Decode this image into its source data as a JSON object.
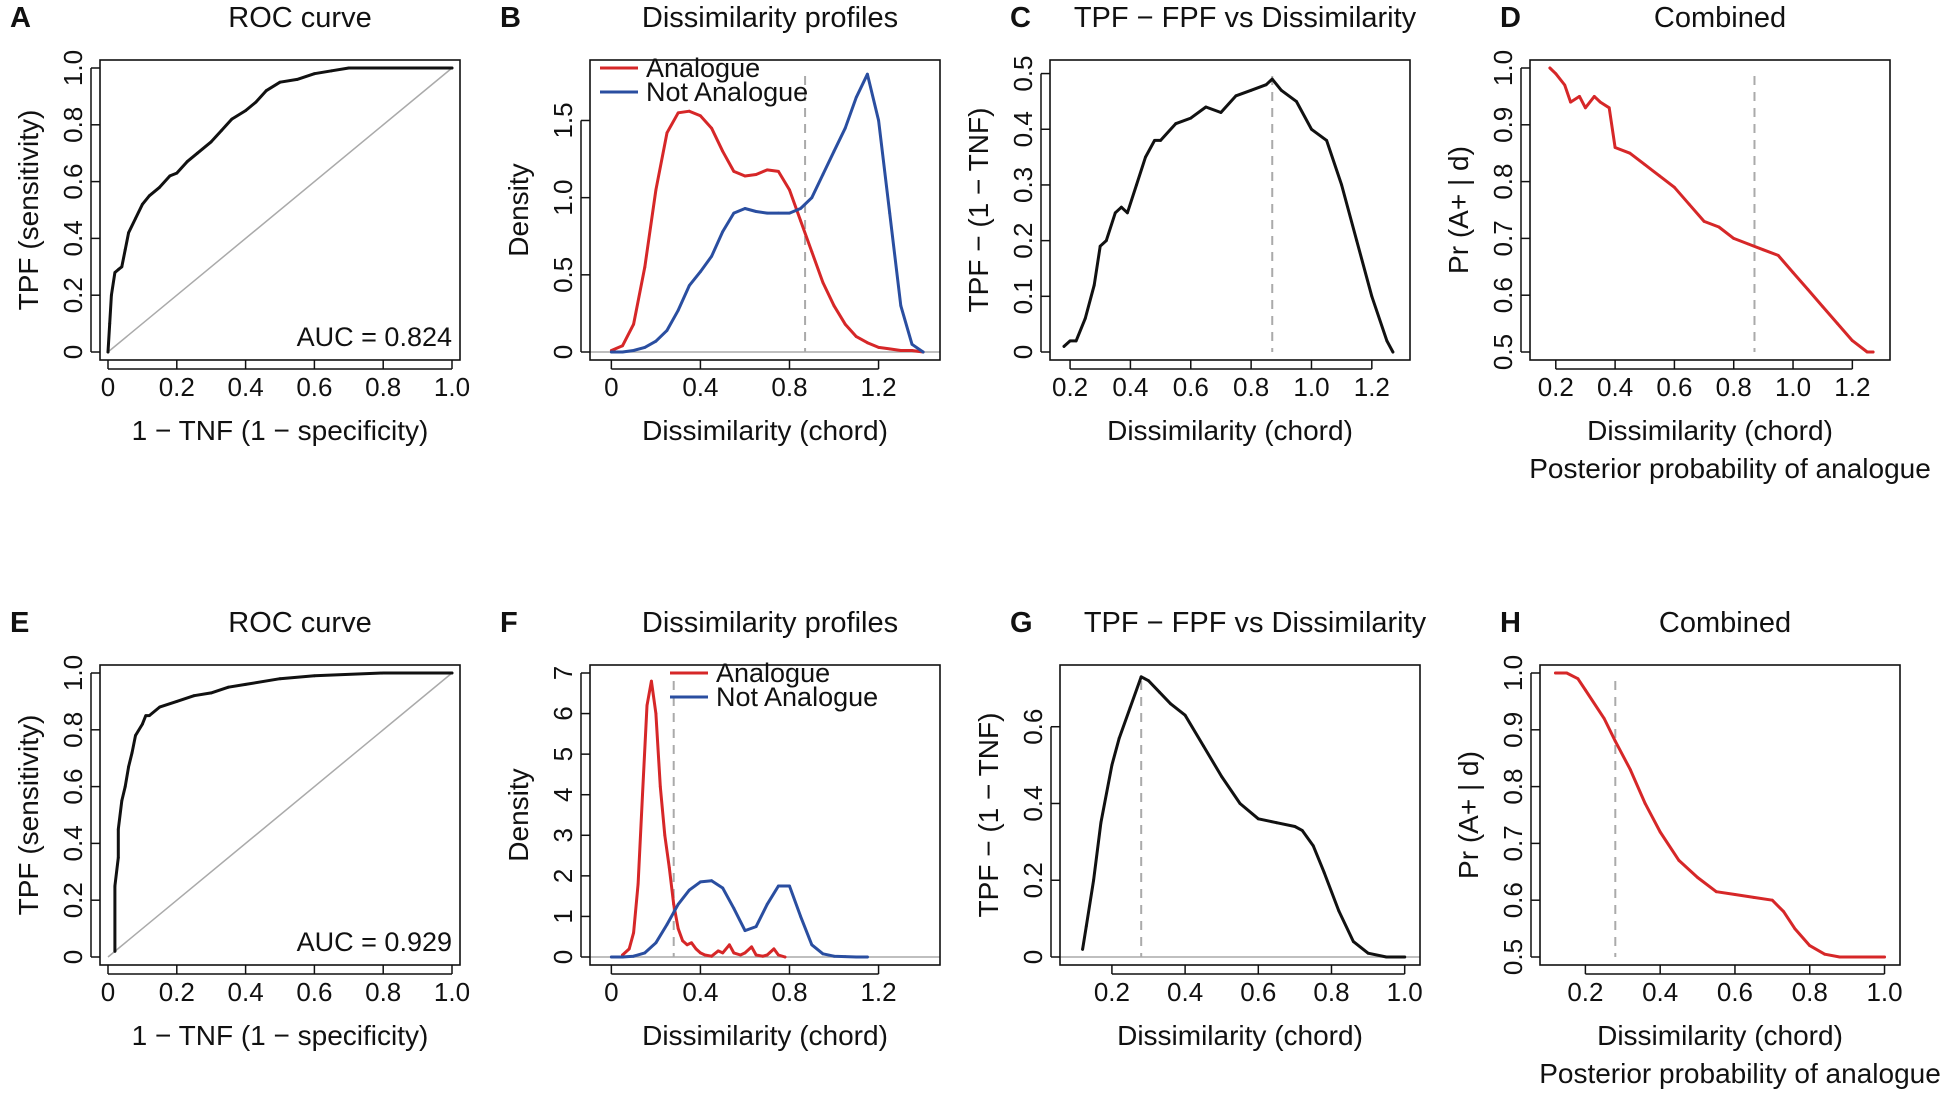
{
  "figure": "Analogue evaluation panels",
  "colors": {
    "analogue": "#d62728",
    "not_analogue": "#2a4ea0",
    "curve": "#111111",
    "reference": "#aaaaaa",
    "dashed": "#aaaaaa"
  },
  "chart_data": [
    {
      "id": "A",
      "type": "line",
      "title": "ROC curve",
      "xlabel": "1 − TNF (1 − specificity)",
      "ylabel": "TPF (sensitivity)",
      "xlim": [
        0,
        1
      ],
      "ylim": [
        0,
        1
      ],
      "xticks": [
        0,
        0.2,
        0.4,
        0.6,
        0.8,
        1.0
      ],
      "xtick_labels": [
        "0",
        "0.2",
        "0.4",
        "0.6",
        "0.8",
        "1.0"
      ],
      "yticks": [
        0,
        0.2,
        0.4,
        0.6,
        0.8,
        1.0
      ],
      "ytick_labels": [
        "0",
        "0.2",
        "0.4",
        "0.6",
        "0.8",
        "1.0"
      ],
      "annotation": "AUC = 0.824",
      "diagonal": true,
      "series": [
        {
          "name": "ROC",
          "color": "#111111",
          "x": [
            0,
            0.005,
            0.01,
            0.02,
            0.03,
            0.04,
            0.05,
            0.06,
            0.08,
            0.1,
            0.12,
            0.15,
            0.18,
            0.2,
            0.23,
            0.26,
            0.3,
            0.33,
            0.36,
            0.4,
            0.43,
            0.46,
            0.5,
            0.55,
            0.6,
            0.65,
            0.7,
            0.8,
            0.9,
            1.0
          ],
          "y": [
            0,
            0.1,
            0.2,
            0.28,
            0.29,
            0.3,
            0.36,
            0.42,
            0.47,
            0.52,
            0.55,
            0.58,
            0.62,
            0.63,
            0.67,
            0.7,
            0.74,
            0.78,
            0.82,
            0.85,
            0.88,
            0.92,
            0.95,
            0.96,
            0.98,
            0.99,
            1.0,
            1.0,
            1.0,
            1.0
          ]
        }
      ]
    },
    {
      "id": "B",
      "type": "line",
      "title": "Dissimilarity profiles",
      "xlabel": "Dissimilarity (chord)",
      "ylabel": "Density",
      "xlim": [
        -0.06,
        1.44
      ],
      "ylim": [
        0,
        1.84
      ],
      "xticks": [
        0,
        0.4,
        0.8,
        1.2
      ],
      "xtick_labels": [
        "0",
        "0.4",
        "0.8",
        "1.2"
      ],
      "yticks": [
        0,
        0.5,
        1.0,
        1.5
      ],
      "ytick_labels": [
        "0",
        "0.5",
        "1.0",
        "1.5"
      ],
      "vline": 0.87,
      "baseline": true,
      "legend": {
        "position": "top-left",
        "entries": [
          "Analogue",
          "Not Analogue"
        ]
      },
      "series": [
        {
          "name": "Analogue",
          "color": "#d62728",
          "x": [
            0,
            0.05,
            0.1,
            0.15,
            0.2,
            0.25,
            0.3,
            0.35,
            0.4,
            0.45,
            0.5,
            0.55,
            0.6,
            0.65,
            0.7,
            0.75,
            0.8,
            0.85,
            0.9,
            0.95,
            1.0,
            1.05,
            1.1,
            1.15,
            1.2,
            1.25,
            1.3,
            1.35,
            1.4
          ],
          "y": [
            0.01,
            0.04,
            0.18,
            0.55,
            1.05,
            1.42,
            1.55,
            1.56,
            1.53,
            1.45,
            1.3,
            1.17,
            1.14,
            1.15,
            1.18,
            1.17,
            1.05,
            0.85,
            0.65,
            0.45,
            0.3,
            0.18,
            0.1,
            0.06,
            0.03,
            0.02,
            0.01,
            0.01,
            0.0
          ]
        },
        {
          "name": "Not Analogue",
          "color": "#2a4ea0",
          "x": [
            0,
            0.05,
            0.1,
            0.15,
            0.2,
            0.25,
            0.3,
            0.35,
            0.4,
            0.45,
            0.5,
            0.55,
            0.6,
            0.65,
            0.7,
            0.75,
            0.8,
            0.85,
            0.9,
            0.95,
            1.0,
            1.05,
            1.1,
            1.15,
            1.2,
            1.25,
            1.3,
            1.35,
            1.4
          ],
          "y": [
            0.0,
            0.0,
            0.01,
            0.03,
            0.07,
            0.14,
            0.27,
            0.43,
            0.52,
            0.62,
            0.78,
            0.9,
            0.93,
            0.91,
            0.9,
            0.9,
            0.9,
            0.93,
            1.0,
            1.15,
            1.3,
            1.45,
            1.65,
            1.8,
            1.5,
            0.9,
            0.3,
            0.05,
            0.0
          ]
        }
      ]
    },
    {
      "id": "C",
      "type": "line",
      "title": "TPF − FPF vs Dissimilarity",
      "xlabel": "Dissimilarity (chord)",
      "ylabel": "TPF − (1 − TNF)",
      "xlim": [
        0.16,
        1.3
      ],
      "ylim": [
        0,
        0.51
      ],
      "xticks": [
        0.2,
        0.4,
        0.6,
        0.8,
        1.0,
        1.2
      ],
      "xtick_labels": [
        "0.2",
        "0.4",
        "0.6",
        "0.8",
        "1.0",
        "1.2"
      ],
      "yticks": [
        0,
        0.1,
        0.2,
        0.3,
        0.4,
        0.5
      ],
      "ytick_labels": [
        "0",
        "0.1",
        "0.2",
        "0.3",
        "0.4",
        "0.5"
      ],
      "vline": 0.87,
      "series": [
        {
          "name": "TPF-FPF",
          "color": "#111111",
          "x": [
            0.18,
            0.2,
            0.22,
            0.25,
            0.28,
            0.3,
            0.32,
            0.35,
            0.37,
            0.39,
            0.42,
            0.45,
            0.48,
            0.5,
            0.55,
            0.6,
            0.65,
            0.7,
            0.75,
            0.8,
            0.85,
            0.87,
            0.9,
            0.95,
            1.0,
            1.05,
            1.1,
            1.15,
            1.2,
            1.25,
            1.27
          ],
          "y": [
            0.01,
            0.02,
            0.02,
            0.06,
            0.12,
            0.19,
            0.2,
            0.25,
            0.26,
            0.25,
            0.3,
            0.35,
            0.38,
            0.38,
            0.41,
            0.42,
            0.44,
            0.43,
            0.46,
            0.47,
            0.48,
            0.49,
            0.47,
            0.45,
            0.4,
            0.38,
            0.3,
            0.2,
            0.1,
            0.02,
            0.0
          ]
        }
      ]
    },
    {
      "id": "D",
      "type": "line",
      "title": "Combined",
      "xlabel": "Dissimilarity (chord)",
      "xlabel2": "Posterior probability of analogue",
      "ylabel": "Pr (A+ | d)",
      "xlim": [
        0.14,
        1.3
      ],
      "ylim": [
        0.5,
        1.0
      ],
      "xticks": [
        0.2,
        0.4,
        0.6,
        0.8,
        1.0,
        1.2
      ],
      "xtick_labels": [
        "0.2",
        "0.4",
        "0.6",
        "0.8",
        "1.0",
        "1.2"
      ],
      "yticks": [
        0.5,
        0.6,
        0.7,
        0.8,
        0.9,
        1.0
      ],
      "ytick_labels": [
        "0.5",
        "0.6",
        "0.7",
        "0.8",
        "0.9",
        "1.0"
      ],
      "vline": 0.87,
      "series": [
        {
          "name": "Posterior",
          "color": "#d62728",
          "x": [
            0.18,
            0.2,
            0.23,
            0.25,
            0.28,
            0.3,
            0.33,
            0.35,
            0.38,
            0.4,
            0.45,
            0.5,
            0.55,
            0.6,
            0.65,
            0.7,
            0.75,
            0.8,
            0.85,
            0.9,
            0.95,
            1.0,
            1.05,
            1.1,
            1.15,
            1.2,
            1.25,
            1.27
          ],
          "y": [
            1.0,
            0.99,
            0.97,
            0.94,
            0.95,
            0.93,
            0.95,
            0.94,
            0.93,
            0.86,
            0.85,
            0.83,
            0.81,
            0.79,
            0.76,
            0.73,
            0.72,
            0.7,
            0.69,
            0.68,
            0.67,
            0.64,
            0.61,
            0.58,
            0.55,
            0.52,
            0.5,
            0.5
          ]
        }
      ]
    },
    {
      "id": "E",
      "type": "line",
      "title": "ROC curve",
      "xlabel": "1 − TNF (1 − specificity)",
      "ylabel": "TPF (sensitivity)",
      "xlim": [
        0,
        1
      ],
      "ylim": [
        0,
        1
      ],
      "xticks": [
        0,
        0.2,
        0.4,
        0.6,
        0.8,
        1.0
      ],
      "xtick_labels": [
        "0",
        "0.2",
        "0.4",
        "0.6",
        "0.8",
        "1.0"
      ],
      "yticks": [
        0,
        0.2,
        0.4,
        0.6,
        0.8,
        1.0
      ],
      "ytick_labels": [
        "0",
        "0.2",
        "0.4",
        "0.6",
        "0.8",
        "1.0"
      ],
      "annotation": "AUC = 0.929",
      "diagonal": true,
      "series": [
        {
          "name": "ROC",
          "color": "#111111",
          "x": [
            0.02,
            0.02,
            0.03,
            0.03,
            0.04,
            0.05,
            0.06,
            0.07,
            0.08,
            0.1,
            0.11,
            0.12,
            0.15,
            0.2,
            0.25,
            0.3,
            0.35,
            0.4,
            0.5,
            0.6,
            0.8,
            1.0
          ],
          "y": [
            0.02,
            0.25,
            0.35,
            0.45,
            0.55,
            0.6,
            0.67,
            0.72,
            0.78,
            0.82,
            0.85,
            0.85,
            0.88,
            0.9,
            0.92,
            0.93,
            0.95,
            0.96,
            0.98,
            0.99,
            1.0,
            1.0
          ]
        }
      ]
    },
    {
      "id": "F",
      "type": "line",
      "title": "Dissimilarity profiles",
      "xlabel": "Dissimilarity (chord)",
      "ylabel": "Density",
      "xlim": [
        -0.06,
        1.44
      ],
      "ylim": [
        0,
        7.0
      ],
      "xticks": [
        0,
        0.4,
        0.8,
        1.2
      ],
      "xtick_labels": [
        "0",
        "0.4",
        "0.8",
        "1.2"
      ],
      "yticks": [
        0,
        1,
        2,
        3,
        4,
        5,
        6,
        7
      ],
      "ytick_labels": [
        "0",
        "1",
        "2",
        "3",
        "4",
        "5",
        "6",
        "7"
      ],
      "vline": 0.28,
      "baseline": true,
      "legend": {
        "position": "top-right",
        "entries": [
          "Analogue",
          "Not Analogue"
        ]
      },
      "series": [
        {
          "name": "Analogue",
          "color": "#d62728",
          "x": [
            0.05,
            0.08,
            0.1,
            0.12,
            0.14,
            0.16,
            0.18,
            0.2,
            0.22,
            0.24,
            0.26,
            0.28,
            0.3,
            0.32,
            0.34,
            0.36,
            0.38,
            0.4,
            0.42,
            0.45,
            0.48,
            0.5,
            0.53,
            0.55,
            0.58,
            0.6,
            0.63,
            0.65,
            0.68,
            0.7,
            0.73,
            0.75,
            0.78
          ],
          "y": [
            0.05,
            0.2,
            0.6,
            1.8,
            4.0,
            6.2,
            6.8,
            6.0,
            4.2,
            3.0,
            2.2,
            1.3,
            0.7,
            0.4,
            0.3,
            0.35,
            0.2,
            0.1,
            0.05,
            0.02,
            0.15,
            0.1,
            0.3,
            0.1,
            0.05,
            0.1,
            0.25,
            0.05,
            0.02,
            0.05,
            0.2,
            0.05,
            0.0
          ]
        },
        {
          "name": "Not Analogue",
          "color": "#2a4ea0",
          "x": [
            0.0,
            0.05,
            0.1,
            0.15,
            0.2,
            0.25,
            0.3,
            0.35,
            0.4,
            0.45,
            0.5,
            0.55,
            0.6,
            0.65,
            0.7,
            0.75,
            0.8,
            0.85,
            0.9,
            0.95,
            1.0,
            1.05,
            1.1,
            1.15
          ],
          "y": [
            0.0,
            0.0,
            0.02,
            0.1,
            0.35,
            0.8,
            1.3,
            1.65,
            1.85,
            1.88,
            1.7,
            1.2,
            0.65,
            0.75,
            1.3,
            1.75,
            1.75,
            1.0,
            0.3,
            0.08,
            0.02,
            0.01,
            0.0,
            0.0
          ]
        }
      ]
    },
    {
      "id": "G",
      "type": "line",
      "title": "TPF − FPF vs Dissimilarity",
      "xlabel": "Dissimilarity (chord)",
      "ylabel": "TPF − (1 − TNF)",
      "xlim": [
        0.08,
        1.02
      ],
      "ylim": [
        0,
        0.74
      ],
      "xticks": [
        0.2,
        0.4,
        0.6,
        0.8,
        1.0
      ],
      "xtick_labels": [
        "0.2",
        "0.4",
        "0.6",
        "0.8",
        "1.0"
      ],
      "yticks": [
        0,
        0.2,
        0.4,
        0.6
      ],
      "ytick_labels": [
        "0",
        "0.2",
        "0.4",
        "0.6"
      ],
      "vline": 0.28,
      "baseline": true,
      "series": [
        {
          "name": "TPF-FPF",
          "color": "#111111",
          "x": [
            0.12,
            0.13,
            0.15,
            0.17,
            0.2,
            0.22,
            0.25,
            0.28,
            0.3,
            0.33,
            0.36,
            0.4,
            0.45,
            0.5,
            0.55,
            0.6,
            0.65,
            0.7,
            0.72,
            0.75,
            0.78,
            0.82,
            0.86,
            0.9,
            0.95,
            1.0
          ],
          "y": [
            0.02,
            0.08,
            0.2,
            0.35,
            0.5,
            0.57,
            0.65,
            0.73,
            0.72,
            0.69,
            0.66,
            0.63,
            0.55,
            0.47,
            0.4,
            0.36,
            0.35,
            0.34,
            0.33,
            0.29,
            0.22,
            0.12,
            0.04,
            0.01,
            0.0,
            0.0
          ]
        }
      ]
    },
    {
      "id": "H",
      "type": "line",
      "title": "Combined",
      "xlabel": "Dissimilarity (chord)",
      "xlabel2": "Posterior probability of analogue",
      "ylabel": "Pr (A+ | d)",
      "xlim": [
        0.1,
        1.02
      ],
      "ylim": [
        0.5,
        1.0
      ],
      "xticks": [
        0.2,
        0.4,
        0.6,
        0.8,
        1.0
      ],
      "xtick_labels": [
        "0.2",
        "0.4",
        "0.6",
        "0.8",
        "1.0"
      ],
      "yticks": [
        0.5,
        0.6,
        0.7,
        0.8,
        0.9,
        1.0
      ],
      "ytick_labels": [
        "0.5",
        "0.6",
        "0.7",
        "0.8",
        "0.9",
        "1.0"
      ],
      "vline": 0.28,
      "series": [
        {
          "name": "Posterior",
          "color": "#d62728",
          "x": [
            0.12,
            0.15,
            0.18,
            0.2,
            0.25,
            0.28,
            0.32,
            0.36,
            0.4,
            0.45,
            0.5,
            0.55,
            0.6,
            0.65,
            0.7,
            0.73,
            0.76,
            0.8,
            0.84,
            0.88,
            0.92,
            1.0
          ],
          "y": [
            1.0,
            1.0,
            0.99,
            0.97,
            0.92,
            0.88,
            0.83,
            0.77,
            0.72,
            0.67,
            0.64,
            0.615,
            0.61,
            0.605,
            0.6,
            0.58,
            0.55,
            0.52,
            0.505,
            0.5,
            0.5,
            0.5
          ]
        }
      ]
    }
  ]
}
